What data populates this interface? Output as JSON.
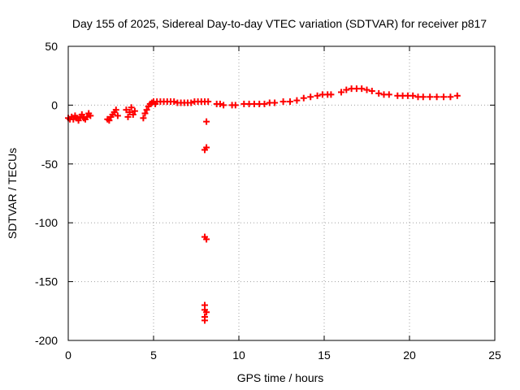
{
  "chart_data": {
    "type": "scatter",
    "title": "Day 155 of 2025, Sidereal Day-to-day VTEC variation (SDTVAR) for receiver p817",
    "xlabel": "GPS time / hours",
    "ylabel": "SDTVAR / TECUs",
    "xlim": [
      0,
      25
    ],
    "ylim": [
      -200,
      50
    ],
    "xticks": [
      "0",
      "5",
      "10",
      "15",
      "20",
      "25"
    ],
    "yticks": [
      "50",
      "0",
      "-50",
      "-100",
      "-150",
      "-200"
    ],
    "grid": true,
    "marker": "plus",
    "color": "#ff0000",
    "series": [
      {
        "name": "SDTVAR",
        "points": [
          [
            0.0,
            -11
          ],
          [
            0.1,
            -12
          ],
          [
            0.2,
            -10
          ],
          [
            0.3,
            -12
          ],
          [
            0.4,
            -9
          ],
          [
            0.5,
            -11
          ],
          [
            0.6,
            -13
          ],
          [
            0.7,
            -10
          ],
          [
            0.8,
            -8
          ],
          [
            0.9,
            -11
          ],
          [
            1.0,
            -12
          ],
          [
            1.1,
            -10
          ],
          [
            1.2,
            -7
          ],
          [
            1.3,
            -9
          ],
          [
            2.3,
            -12
          ],
          [
            2.4,
            -13
          ],
          [
            2.5,
            -10
          ],
          [
            2.6,
            -8
          ],
          [
            2.7,
            -6
          ],
          [
            2.8,
            -4
          ],
          [
            2.9,
            -9
          ],
          [
            3.4,
            -4
          ],
          [
            3.5,
            -10
          ],
          [
            3.6,
            -6
          ],
          [
            3.7,
            -2
          ],
          [
            3.8,
            -8
          ],
          [
            3.9,
            -5
          ],
          [
            4.4,
            -11
          ],
          [
            4.5,
            -7
          ],
          [
            4.6,
            -4
          ],
          [
            4.7,
            -1
          ],
          [
            4.8,
            1
          ],
          [
            4.9,
            2
          ],
          [
            5.0,
            3
          ],
          [
            5.1,
            1
          ],
          [
            5.2,
            3
          ],
          [
            5.4,
            3
          ],
          [
            5.6,
            3
          ],
          [
            5.8,
            3
          ],
          [
            6.0,
            3
          ],
          [
            6.2,
            3
          ],
          [
            6.4,
            2
          ],
          [
            6.6,
            2
          ],
          [
            6.8,
            2
          ],
          [
            7.0,
            2
          ],
          [
            7.2,
            2
          ],
          [
            7.4,
            3
          ],
          [
            7.6,
            3
          ],
          [
            7.8,
            3
          ],
          [
            8.0,
            3
          ],
          [
            8.2,
            3
          ],
          [
            8.1,
            -14
          ],
          [
            8.0,
            -38
          ],
          [
            8.1,
            -36
          ],
          [
            8.0,
            -112
          ],
          [
            8.1,
            -114
          ],
          [
            8.0,
            -170
          ],
          [
            8.0,
            -174
          ],
          [
            8.1,
            -176
          ],
          [
            8.0,
            -180
          ],
          [
            8.0,
            -183
          ],
          [
            8.7,
            1
          ],
          [
            8.9,
            1
          ],
          [
            9.1,
            0
          ],
          [
            9.6,
            0
          ],
          [
            9.8,
            0
          ],
          [
            10.3,
            1
          ],
          [
            10.6,
            1
          ],
          [
            10.9,
            1
          ],
          [
            11.2,
            1
          ],
          [
            11.5,
            1
          ],
          [
            11.8,
            2
          ],
          [
            12.1,
            2
          ],
          [
            12.6,
            3
          ],
          [
            13.0,
            3
          ],
          [
            13.4,
            4
          ],
          [
            13.8,
            6
          ],
          [
            14.2,
            7
          ],
          [
            14.6,
            8
          ],
          [
            14.9,
            9
          ],
          [
            15.2,
            9
          ],
          [
            15.4,
            9
          ],
          [
            16.0,
            11
          ],
          [
            16.3,
            13
          ],
          [
            16.6,
            14
          ],
          [
            16.9,
            14
          ],
          [
            17.2,
            14
          ],
          [
            17.5,
            13
          ],
          [
            17.8,
            12
          ],
          [
            18.2,
            10
          ],
          [
            18.5,
            9
          ],
          [
            18.8,
            9
          ],
          [
            19.3,
            8
          ],
          [
            19.6,
            8
          ],
          [
            19.9,
            8
          ],
          [
            20.2,
            8
          ],
          [
            20.5,
            7
          ],
          [
            20.8,
            7
          ],
          [
            21.2,
            7
          ],
          [
            21.6,
            7
          ],
          [
            22.0,
            7
          ],
          [
            22.4,
            7
          ],
          [
            22.8,
            8
          ]
        ]
      }
    ]
  }
}
